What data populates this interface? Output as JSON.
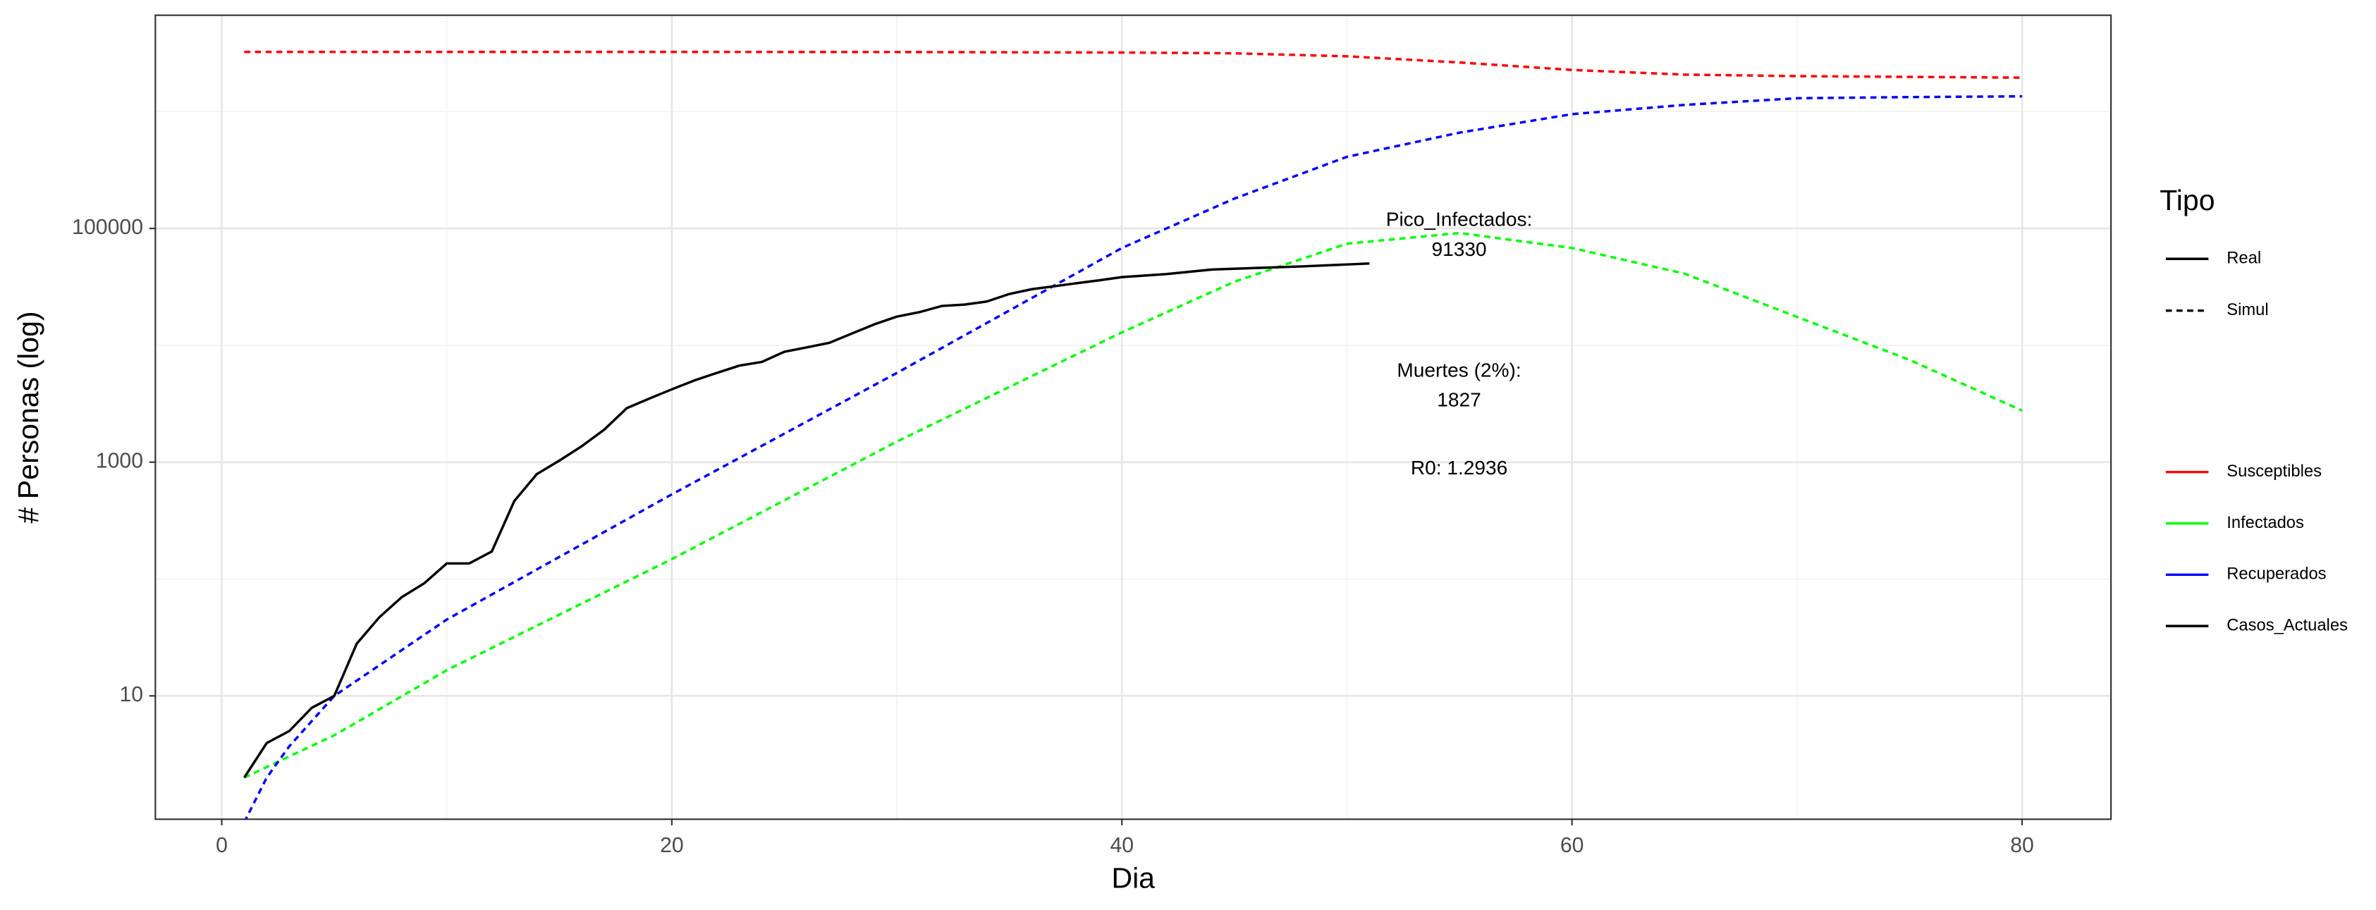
{
  "chart_data": {
    "type": "line",
    "x_label": "Dia",
    "y_label": "# Personas (log)",
    "xlim": [
      -2.95,
      83.95
    ],
    "xticks": [
      0,
      20,
      40,
      60,
      80
    ],
    "minor_xticks": [
      10,
      30,
      50,
      70
    ],
    "ylim": [
      0.88,
      6670000
    ],
    "yticks": [
      10,
      1000,
      100000
    ],
    "minor_yticks": [
      100,
      10000,
      1000000
    ],
    "y_scale": "log",
    "grid": true,
    "legend_title": "Tipo",
    "legend_position": "right",
    "linetype_legend": [
      {
        "name": "Real",
        "dash": "solid"
      },
      {
        "name": "Simul",
        "dash": "dashed"
      }
    ],
    "series": [
      {
        "name": "Susceptibles",
        "color": "#ff0000",
        "linetype": "Simul",
        "x": [
          1,
          10,
          20,
          30,
          40,
          45,
          50,
          55,
          60,
          65,
          70,
          75,
          80
        ],
        "values": [
          3240000,
          3240000,
          3240000,
          3230000,
          3200000,
          3150000,
          2970000,
          2630000,
          2270000,
          2070000,
          2010000,
          1980000,
          1950000
        ]
      },
      {
        "name": "Infectados",
        "color": "#00ff00",
        "linetype": "Simul",
        "x": [
          1,
          5,
          10,
          20,
          30,
          40,
          45,
          50,
          55,
          60,
          65,
          70,
          75,
          80
        ],
        "values": [
          2,
          4.6,
          16.6,
          148,
          1500,
          12900,
          35000,
          74000,
          91330,
          68000,
          41000,
          17500,
          7500,
          2760
        ]
      },
      {
        "name": "Recuperados",
        "color": "#0000ff",
        "linetype": "Simul",
        "x": [
          1,
          2,
          3,
          5,
          10,
          20,
          30,
          40,
          45,
          50,
          55,
          60,
          65,
          70,
          75,
          80
        ],
        "values": [
          0.83,
          2,
          3.7,
          10,
          45,
          530,
          5800,
          68000,
          180000,
          410000,
          660000,
          950000,
          1140000,
          1300000,
          1330000,
          1350000
        ]
      },
      {
        "name": "Casos_Actuales",
        "color": "#000000",
        "linetype": "Real",
        "x": [
          1,
          2,
          3,
          4,
          5,
          6,
          7,
          8,
          9,
          10,
          11,
          12,
          13,
          14,
          15,
          16,
          17,
          18,
          19,
          20,
          21,
          22,
          23,
          24,
          25,
          26,
          27,
          28,
          29,
          30,
          31,
          32,
          33,
          34,
          35,
          36,
          37,
          38,
          39,
          40,
          42,
          44,
          46,
          48,
          51
        ],
        "values": [
          2,
          3.95,
          5,
          7.9,
          10,
          28,
          47,
          70,
          92,
          136,
          136,
          172,
          465,
          790,
          1030,
          1370,
          1900,
          2900,
          3500,
          4200,
          5000,
          5800,
          6700,
          7200,
          8800,
          9600,
          10500,
          12600,
          15100,
          17600,
          19200,
          21700,
          22300,
          23700,
          27500,
          30200,
          32000,
          34000,
          36000,
          38300,
          40700,
          44500,
          45900,
          47300,
          50100
        ]
      }
    ],
    "annotations": [
      {
        "lines": [
          "Pico_Infectados:",
          "91330"
        ]
      },
      {
        "lines": [
          "Muertes (2%):",
          "1827"
        ]
      },
      {
        "lines": [
          "R0: 1.2936"
        ]
      }
    ]
  }
}
